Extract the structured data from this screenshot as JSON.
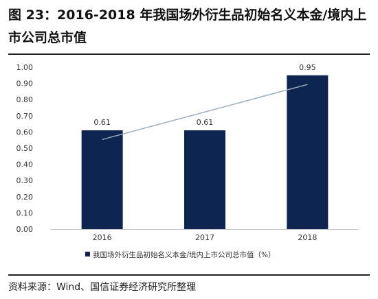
{
  "figure": {
    "title": "图 23：2016-2018 年我国场外衍生品初始名义本金/境内上市公司总市值",
    "source": "资料来源：Wind、国信证券经济研究所整理"
  },
  "chart_data": {
    "type": "bar",
    "categories": [
      "2016",
      "2017",
      "2018"
    ],
    "series": [
      {
        "name": "我国场外衍生品初始名义本金/境内上市公司总市值（%）",
        "values": [
          0.61,
          0.61,
          0.95
        ],
        "color": "#0d2550"
      }
    ],
    "data_labels": [
      "0.61",
      "0.61",
      "0.95"
    ],
    "trendline": {
      "type": "linear",
      "color": "#9aaab8"
    },
    "ylim": [
      0,
      1.0
    ],
    "yticks": [
      "0.00",
      "0.10",
      "0.20",
      "0.30",
      "0.40",
      "0.50",
      "0.60",
      "0.70",
      "0.80",
      "0.90",
      "1.00"
    ],
    "grid": false,
    "legend_position": "bottom-center",
    "xlabel": "",
    "ylabel": ""
  }
}
